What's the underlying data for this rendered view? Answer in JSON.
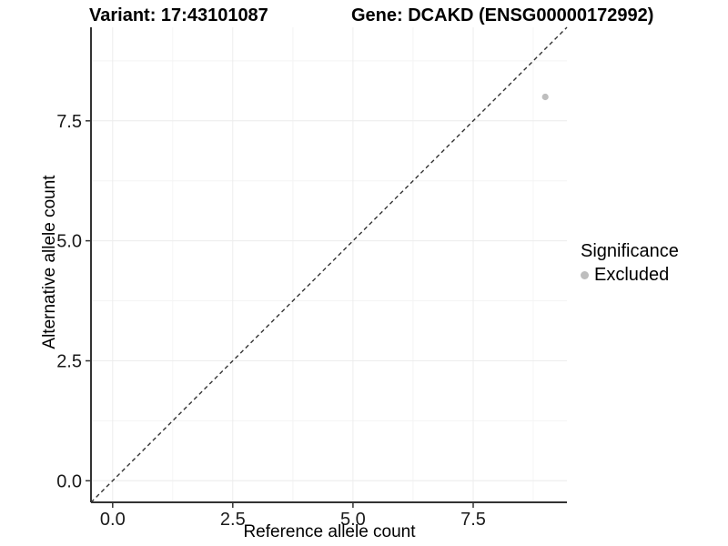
{
  "chart_data": {
    "type": "scatter",
    "title_variant": "Variant: 17:43101087",
    "title_gene": "Gene: DCAKD (ENSG00000172992)",
    "xlabel": "Reference allele count",
    "ylabel": "Alternative allele count",
    "xlim": [
      -0.45,
      9.45
    ],
    "ylim": [
      -0.45,
      9.45
    ],
    "xticks": {
      "values": [
        0,
        2.5,
        5,
        7.5
      ],
      "labels": [
        "0.0",
        "2.5",
        "5.0",
        "7.5"
      ]
    },
    "yticks": {
      "values": [
        0,
        2.5,
        5,
        7.5
      ],
      "labels": [
        "0.0",
        "2.5",
        "5.0",
        "7.5"
      ]
    },
    "minor_gridlines": [
      1.25,
      3.75,
      6.25,
      8.75
    ],
    "grid": {
      "major_color": "#ececec",
      "minor_color": "#f4f4f4",
      "visible": true
    },
    "axis": {
      "line_color": "#333333",
      "tick_color": "#333333",
      "text_color": "#1a1a1a"
    },
    "identity_line": {
      "slope": 1,
      "intercept": 0,
      "style": "dashed",
      "color": "#333333"
    },
    "series": [
      {
        "name": "Excluded",
        "color": "#bebebe",
        "points": [
          {
            "x": 9,
            "y": 8
          }
        ]
      }
    ],
    "legend": {
      "title": "Significance",
      "position": "right",
      "entries": [
        {
          "label": "Excluded",
          "marker": "circle",
          "color": "#bebebe"
        }
      ]
    }
  }
}
